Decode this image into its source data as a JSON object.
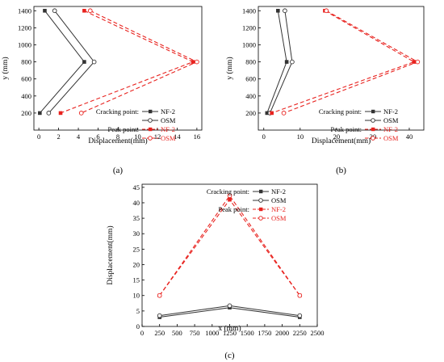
{
  "colors": {
    "black": "#333333",
    "red": "#e8221e",
    "axis": "#000000"
  },
  "chart_data": [
    {
      "type": "line",
      "panel_label": "(a)",
      "xlabel": "Displacement(mm)",
      "ylabel": "y (mm)",
      "xlim": [
        -0.5,
        16.5
      ],
      "ylim": [
        0,
        1450
      ],
      "xticks": [
        "0",
        "2",
        "4",
        "6",
        "8",
        "10",
        "12",
        "14",
        "16"
      ],
      "xtick_values": [
        0,
        2,
        4,
        6,
        8,
        10,
        12,
        14,
        16
      ],
      "yticks": [
        "200",
        "400",
        "600",
        "800",
        "1000",
        "1200",
        "1400"
      ],
      "ytick_values": [
        200,
        400,
        600,
        800,
        1000,
        1200,
        1400
      ],
      "series": [
        {
          "name": "NF-2",
          "group": "Cracking point",
          "color": "black",
          "marker": "filled-square",
          "dashed": false,
          "x": [
            0.6,
            4.6,
            0.1
          ],
          "y": [
            1400,
            800,
            200
          ]
        },
        {
          "name": "OSM",
          "group": "Cracking point",
          "color": "black",
          "marker": "open-circle",
          "dashed": false,
          "x": [
            1.6,
            5.6,
            1.0
          ],
          "y": [
            1400,
            800,
            200
          ]
        },
        {
          "name": "NF-2",
          "group": "Peak point",
          "color": "red",
          "marker": "filled-square",
          "dashed": true,
          "x": [
            4.6,
            15.6,
            2.2
          ],
          "y": [
            1400,
            800,
            200
          ]
        },
        {
          "name": "OSM",
          "group": "Peak point",
          "color": "red",
          "marker": "open-circle",
          "dashed": true,
          "x": [
            5.2,
            16.0,
            4.3
          ],
          "y": [
            1400,
            800,
            200
          ]
        }
      ],
      "legend": {
        "placement": "bottom-right",
        "cracking_label": "Cracking point:",
        "peak_label": "Peak point:"
      }
    },
    {
      "type": "line",
      "panel_label": "(b)",
      "xlabel": "Displacement(mm)",
      "ylabel": "y (mm)",
      "xlim": [
        -1.5,
        44
      ],
      "ylim": [
        0,
        1450
      ],
      "xticks": [
        "0",
        "10",
        "20",
        "30",
        "40"
      ],
      "xtick_values": [
        0,
        10,
        20,
        30,
        40
      ],
      "yticks": [
        "200",
        "400",
        "600",
        "800",
        "1000",
        "1200",
        "1400"
      ],
      "ytick_values": [
        200,
        400,
        600,
        800,
        1000,
        1200,
        1400
      ],
      "series": [
        {
          "name": "NF-2",
          "group": "Cracking point",
          "color": "black",
          "marker": "filled-square",
          "dashed": false,
          "x": [
            3.9,
            6.3,
            0.9
          ],
          "y": [
            1400,
            800,
            200
          ]
        },
        {
          "name": "OSM",
          "group": "Cracking point",
          "color": "black",
          "marker": "open-circle",
          "dashed": false,
          "x": [
            5.8,
            7.8,
            1.7
          ],
          "y": [
            1400,
            800,
            200
          ]
        },
        {
          "name": "NF-2",
          "group": "Peak point",
          "color": "red",
          "marker": "filled-square",
          "dashed": true,
          "x": [
            16.8,
            41.3,
            2.2
          ],
          "y": [
            1400,
            800,
            200
          ]
        },
        {
          "name": "OSM",
          "group": "Peak point",
          "color": "red",
          "marker": "open-circle",
          "dashed": true,
          "x": [
            17.2,
            42.3,
            5.5
          ],
          "y": [
            1400,
            800,
            200
          ]
        }
      ],
      "legend": {
        "placement": "bottom-right",
        "cracking_label": "Cracking point:",
        "peak_label": "Peak point:"
      }
    },
    {
      "type": "line",
      "panel_label": "(c)",
      "xlabel": "x (mm)",
      "ylabel": "Displacement(mm)",
      "xlim": [
        0,
        2500
      ],
      "ylim": [
        0,
        46
      ],
      "xticks": [
        "0",
        "250",
        "500",
        "750",
        "1000",
        "1250",
        "1500",
        "1750",
        "2000",
        "2250",
        "2500"
      ],
      "xtick_values": [
        0,
        250,
        500,
        750,
        1000,
        1250,
        1500,
        1750,
        2000,
        2250,
        2500
      ],
      "yticks": [
        "0",
        "5",
        "10",
        "15",
        "20",
        "25",
        "30",
        "35",
        "40",
        "45"
      ],
      "ytick_values": [
        0,
        5,
        10,
        15,
        20,
        25,
        30,
        35,
        40,
        45
      ],
      "series": [
        {
          "name": "NF-2",
          "group": "Cracking point",
          "color": "black",
          "marker": "filled-square",
          "dashed": false,
          "x": [
            250,
            1250,
            2250
          ],
          "y": [
            3.0,
            6.1,
            3.0
          ]
        },
        {
          "name": "OSM",
          "group": "Cracking point",
          "color": "black",
          "marker": "open-circle",
          "dashed": false,
          "x": [
            250,
            1250,
            2250
          ],
          "y": [
            3.5,
            6.7,
            3.5
          ]
        },
        {
          "name": "NF-2",
          "group": "Peak point",
          "color": "red",
          "marker": "filled-square",
          "dashed": true,
          "x": [
            250,
            1250,
            2250
          ],
          "y": [
            10.0,
            41.0,
            10.0
          ]
        },
        {
          "name": "OSM",
          "group": "Peak point",
          "color": "red",
          "marker": "open-circle",
          "dashed": true,
          "x": [
            250,
            1250,
            2250
          ],
          "y": [
            10.0,
            42.3,
            10.0
          ]
        }
      ],
      "legend": {
        "placement": "top-right",
        "cracking_label": "Cracking point:",
        "peak_label": "Peak point:"
      }
    }
  ]
}
